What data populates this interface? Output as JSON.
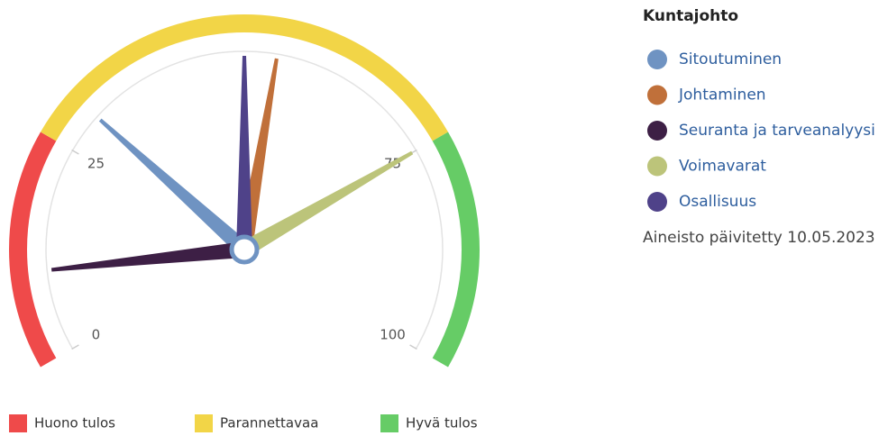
{
  "chart_data": {
    "type": "gauge",
    "title": "Kuntajohto",
    "ylim": [
      0,
      100
    ],
    "yticks": [
      0,
      25,
      75,
      100
    ],
    "bands": [
      {
        "name": "Huono tulos",
        "color": "#ef4a4a",
        "from": 0,
        "to": 25
      },
      {
        "name": "Parannettavaa",
        "color": "#f2d547",
        "from": 25,
        "to": 75
      },
      {
        "name": "Hyvä tulos",
        "color": "#66cc66",
        "from": 75,
        "to": 100
      }
    ],
    "series": [
      {
        "name": "Sitoutuminen",
        "color": "#6f93c2",
        "values": [
          30
        ]
      },
      {
        "name": "Johtaminen",
        "color": "#c0703a",
        "values": [
          54
        ]
      },
      {
        "name": "Seuranta ja tarveanalyysi",
        "color": "#3d1f45",
        "values": [
          10
        ]
      },
      {
        "name": "Voimavarat",
        "color": "#bcc47a",
        "values": [
          75
        ]
      },
      {
        "name": "Osallisuus",
        "color": "#4f4289",
        "values": [
          50
        ]
      }
    ],
    "note": "Aineisto päivitetty 10.05.2023"
  }
}
